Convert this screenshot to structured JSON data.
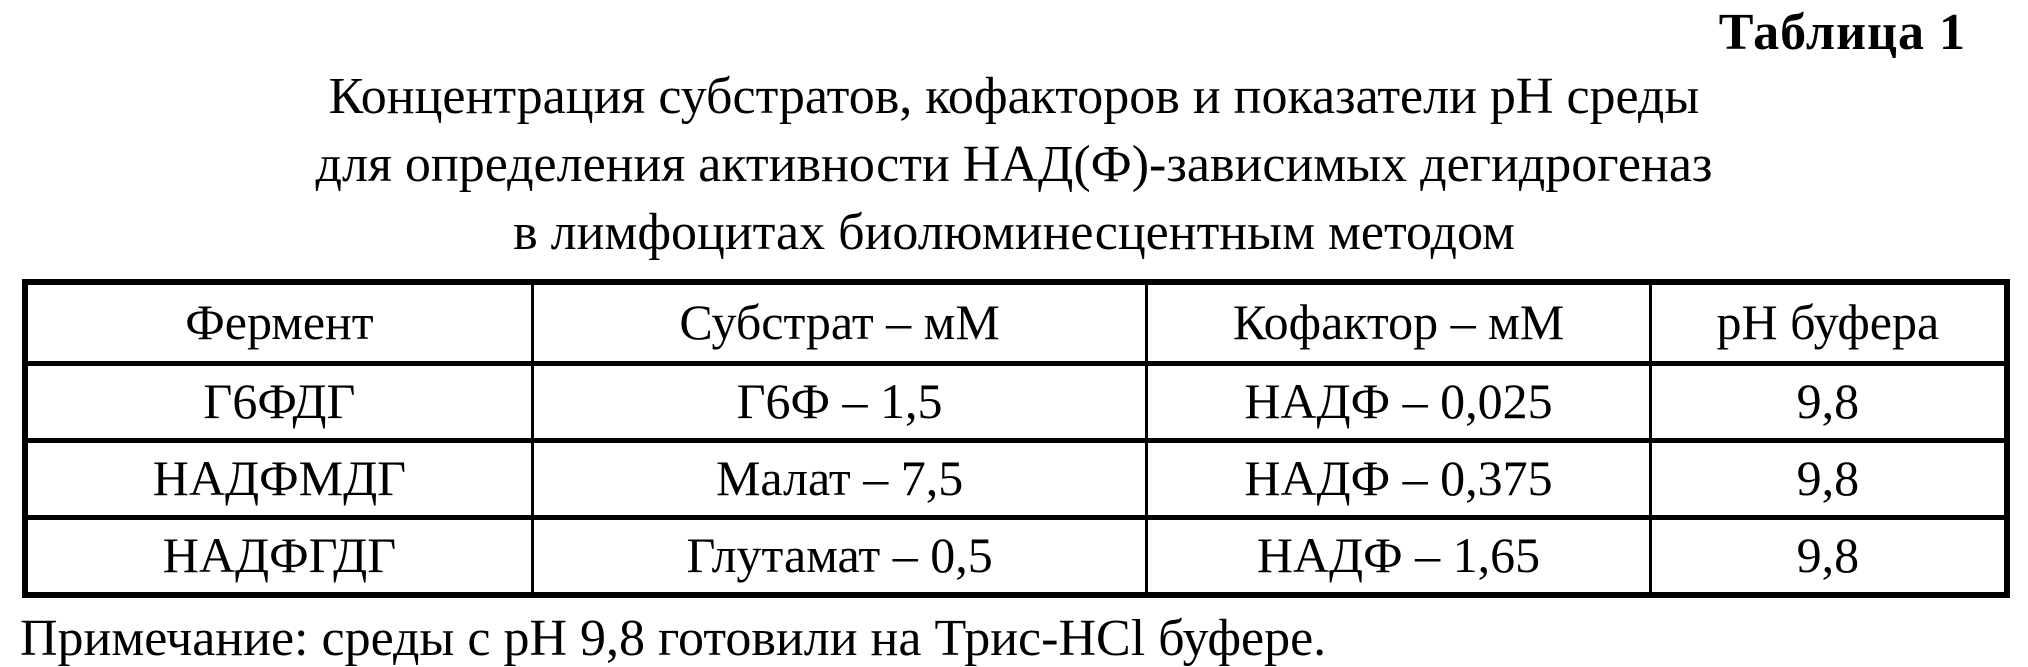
{
  "title": "Таблица 1",
  "caption": {
    "line1": "Концентрация субстратов, кофакторов и показатели pH среды",
    "line2": "для определения активности НАД(Ф)-зависимых дегидрогеназ",
    "line3": "в лимфоцитах биолюминесцентным методом"
  },
  "chart_data": {
    "type": "table",
    "title": "Концентрация субстратов, кофакторов и показатели pH среды для определения активности НАД(Ф)-зависимых дегидрогеназ в лимфоцитах биолюминесцентным методом",
    "headers": [
      "Фермент",
      "Субстрат – мМ",
      "Кофактор – мМ",
      "pH буфера"
    ],
    "rows": [
      [
        "Г6ФДГ",
        "Г6Ф – 1,5",
        "НАДФ – 0,025",
        "9,8"
      ],
      [
        "НАДФМДГ",
        "Малат – 7,5",
        "НАДФ – 0,375",
        "9,8"
      ],
      [
        "НАДФГДГ",
        "Глутамат – 0,5",
        "НАДФ – 1,65",
        "9,8"
      ]
    ]
  },
  "table": {
    "headers": [
      "Фермент",
      "Субстрат – мМ",
      "Кофактор – мМ",
      "pH буфера"
    ],
    "rows": [
      [
        "Г6ФДГ",
        "Г6Ф – 1,5",
        "НАДФ – 0,025",
        "9,8"
      ],
      [
        "НАДФМДГ",
        "Малат – 7,5",
        "НАДФ – 0,375",
        "9,8"
      ],
      [
        "НАДФГДГ",
        "Глутамат – 0,5",
        "НАДФ – 1,65",
        "9,8"
      ]
    ]
  },
  "note": "Примечание: среды с pH 9,8 готовили на Трис-HCl буфере."
}
